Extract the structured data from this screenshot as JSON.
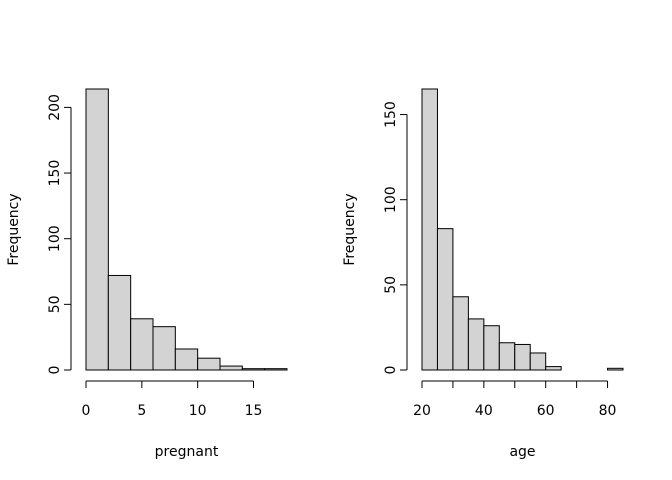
{
  "chart_data": [
    {
      "type": "bar",
      "title": "",
      "xlabel": "pregnant",
      "ylabel": "Frequency",
      "bins": [
        [
          0,
          2
        ],
        [
          2,
          4
        ],
        [
          4,
          6
        ],
        [
          6,
          8
        ],
        [
          8,
          10
        ],
        [
          10,
          12
        ],
        [
          12,
          14
        ],
        [
          14,
          16
        ],
        [
          16,
          18
        ]
      ],
      "values": [
        214,
        72,
        39,
        33,
        16,
        9,
        3,
        1,
        1
      ],
      "xticks": [
        0,
        5,
        10,
        15
      ],
      "xtick_labels": [
        "0",
        "5",
        "10",
        "15"
      ],
      "yticks": [
        0,
        50,
        100,
        150,
        200
      ],
      "ytick_labels": [
        "0",
        "50",
        "100",
        "150",
        "200"
      ],
      "xlim": [
        0,
        18
      ],
      "ylim": [
        0,
        214
      ],
      "grid": false,
      "fill_color": "#d3d3d3"
    },
    {
      "type": "bar",
      "title": "",
      "xlabel": "age",
      "ylabel": "Frequency",
      "bins": [
        [
          20,
          25
        ],
        [
          25,
          30
        ],
        [
          30,
          35
        ],
        [
          35,
          40
        ],
        [
          40,
          45
        ],
        [
          45,
          50
        ],
        [
          50,
          55
        ],
        [
          55,
          60
        ],
        [
          60,
          65
        ],
        [
          65,
          70
        ],
        [
          70,
          75
        ],
        [
          75,
          80
        ],
        [
          80,
          85
        ]
      ],
      "values": [
        165,
        83,
        43,
        30,
        26,
        16,
        15,
        10,
        2,
        0,
        0,
        0,
        1
      ],
      "xticks": [
        20,
        30,
        40,
        50,
        60,
        70,
        80
      ],
      "xtick_labels": [
        "20",
        "",
        "40",
        "",
        "60",
        "",
        "80"
      ],
      "yticks": [
        0,
        50,
        100,
        150
      ],
      "ytick_labels": [
        "0",
        "50",
        "100",
        "150"
      ],
      "xlim": [
        20,
        85
      ],
      "ylim": [
        0,
        165
      ],
      "grid": false,
      "fill_color": "#d3d3d3"
    }
  ]
}
